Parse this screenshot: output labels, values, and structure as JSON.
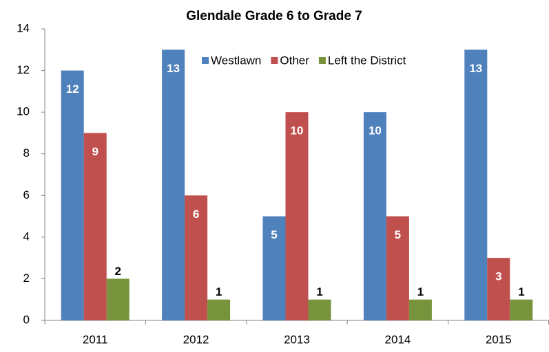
{
  "chart_data": {
    "type": "bar",
    "title": "Glendale Grade 6 to Grade 7",
    "categories": [
      "2011",
      "2012",
      "2013",
      "2014",
      "2015"
    ],
    "series": [
      {
        "name": "Westlawn",
        "color": "#4f81bd",
        "values": [
          12,
          13,
          5,
          10,
          13
        ]
      },
      {
        "name": "Other",
        "color": "#c0504d",
        "values": [
          9,
          6,
          10,
          5,
          3
        ]
      },
      {
        "name": "Left the District",
        "color": "#77933c",
        "values": [
          2,
          1,
          1,
          1,
          1
        ]
      }
    ],
    "ylim": [
      0,
      14
    ],
    "yticks": [
      0,
      2,
      4,
      6,
      8,
      10,
      12,
      14
    ],
    "grid": false,
    "legend": "top"
  }
}
